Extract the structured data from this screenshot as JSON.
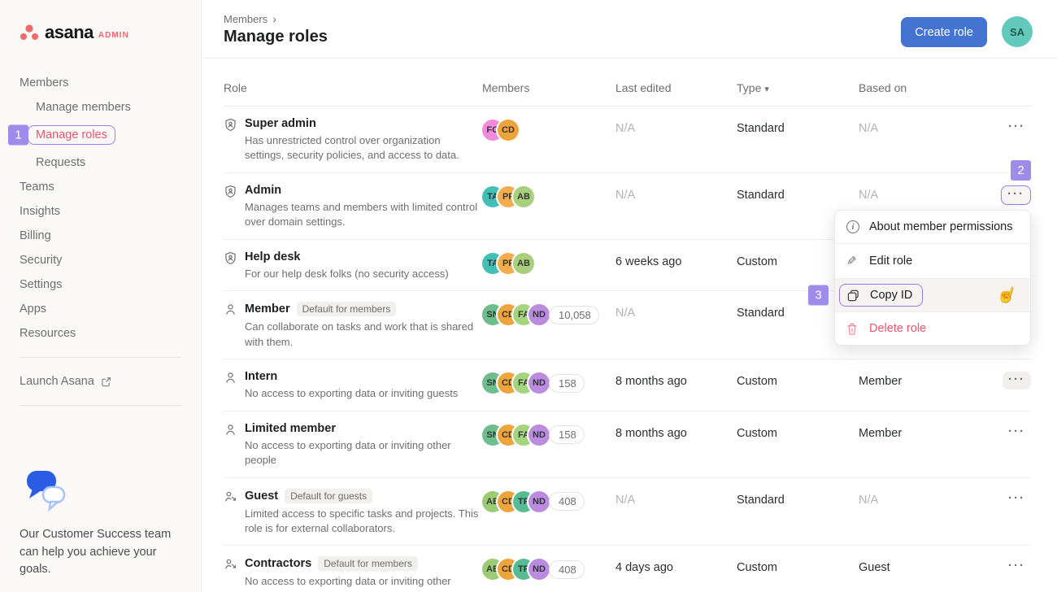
{
  "colors": {
    "accent_purple": "#9d8ce9",
    "outline_purple": "#9b7ce8",
    "brand_coral": "#f06a6a",
    "active_link": "#e8536e",
    "primary_button_blue": "#4573d2",
    "danger_red": "#e8566f",
    "header_avatar_teal": "#62c9bc"
  },
  "sidebar": {
    "logo_text": "asana",
    "logo_badge": "ADMIN",
    "items": [
      {
        "label": "Members",
        "indent": 0,
        "active": false
      },
      {
        "label": "Manage members",
        "indent": 1,
        "active": false
      },
      {
        "label": "Manage roles",
        "indent": 1,
        "active": true
      },
      {
        "label": "Requests",
        "indent": 1,
        "active": false
      },
      {
        "label": "Teams",
        "indent": 0,
        "active": false
      },
      {
        "label": "Insights",
        "indent": 0,
        "active": false
      },
      {
        "label": "Billing",
        "indent": 0,
        "active": false
      },
      {
        "label": "Security",
        "indent": 0,
        "active": false
      },
      {
        "label": "Settings",
        "indent": 0,
        "active": false
      },
      {
        "label": "Apps",
        "indent": 0,
        "active": false
      },
      {
        "label": "Resources",
        "indent": 0,
        "active": false
      }
    ],
    "launch_label": "Launch Asana",
    "help_text": "Our Customer Success team can help you achieve your goals."
  },
  "header": {
    "breadcrumb": "Members",
    "breadcrumb_chevron": "›",
    "title": "Manage roles",
    "create_button": "Create role",
    "avatar_initials": "SA"
  },
  "table": {
    "columns": [
      "Role",
      "Members",
      "Last edited",
      "Type",
      "Based on"
    ],
    "type_caret": "▾",
    "row_menu_icon": "···",
    "rows": [
      {
        "icon": "shield-user",
        "name": "Super admin",
        "badge": "",
        "description": "Has unrestricted control over organization settings, security policies, and access to data.",
        "avatars": [
          {
            "initials": "FG",
            "color": "#f08cdb"
          },
          {
            "initials": "CD",
            "color": "#eca43d"
          }
        ],
        "count": "",
        "last_edited": "N/A",
        "type": "Standard",
        "based_on": "N/A",
        "dots": "plain"
      },
      {
        "icon": "shield-user",
        "name": "Admin",
        "badge": "",
        "description": "Manages teams and members with limited control over domain settings.",
        "avatars": [
          {
            "initials": "TA",
            "color": "#43c0b5"
          },
          {
            "initials": "PF",
            "color": "#f0ad4e"
          },
          {
            "initials": "AB",
            "color": "#a8cf7e"
          }
        ],
        "count": "",
        "last_edited": "N/A",
        "type": "Standard",
        "based_on": "N/A",
        "dots": "outlined"
      },
      {
        "icon": "shield-user",
        "name": "Help desk",
        "badge": "",
        "description": "For our help desk folks (no security access)",
        "avatars": [
          {
            "initials": "TA",
            "color": "#43c0b5"
          },
          {
            "initials": "PF",
            "color": "#f0ad4e"
          },
          {
            "initials": "AB",
            "color": "#a8cf7e"
          }
        ],
        "count": "",
        "last_edited": "6 weeks ago",
        "type": "Custom",
        "based_on": "",
        "dots": "plain"
      },
      {
        "icon": "user",
        "name": "Member",
        "badge": "Default for members",
        "description": "Can collaborate on tasks and work that is shared with them.",
        "avatars": [
          {
            "initials": "SN",
            "color": "#6fbd8c"
          },
          {
            "initials": "CD",
            "color": "#eca43d"
          },
          {
            "initials": "FA",
            "color": "#a6d37f"
          },
          {
            "initials": "ND",
            "color": "#bb8be0"
          }
        ],
        "count": "10,058",
        "last_edited": "N/A",
        "type": "Standard",
        "based_on": "",
        "dots": "plain"
      },
      {
        "icon": "user",
        "name": "Intern",
        "badge": "",
        "description": "No access to exporting data or inviting guests",
        "avatars": [
          {
            "initials": "SN",
            "color": "#6fbd8c"
          },
          {
            "initials": "CD",
            "color": "#eca43d"
          },
          {
            "initials": "FA",
            "color": "#a6d37f"
          },
          {
            "initials": "ND",
            "color": "#bb8be0"
          }
        ],
        "count": "158",
        "last_edited": "8 months ago",
        "type": "Custom",
        "based_on": "Member",
        "dots": "hover"
      },
      {
        "icon": "user",
        "name": "Limited member",
        "badge": "",
        "description": "No access to exporting data or inviting other people",
        "avatars": [
          {
            "initials": "SN",
            "color": "#6fbd8c"
          },
          {
            "initials": "CD",
            "color": "#eca43d"
          },
          {
            "initials": "FA",
            "color": "#a6d37f"
          },
          {
            "initials": "ND",
            "color": "#bb8be0"
          }
        ],
        "count": "158",
        "last_edited": "8 months ago",
        "type": "Custom",
        "based_on": "Member",
        "dots": "plain"
      },
      {
        "icon": "user-external",
        "name": "Guest",
        "badge": "Default for guests",
        "description": "Limited access to specific tasks and projects. This role is for external collaborators.",
        "avatars": [
          {
            "initials": "AB",
            "color": "#9ccb75"
          },
          {
            "initials": "CD",
            "color": "#eca43d"
          },
          {
            "initials": "TP",
            "color": "#58bc92"
          },
          {
            "initials": "ND",
            "color": "#bb8be0"
          }
        ],
        "count": "408",
        "last_edited": "N/A",
        "type": "Standard",
        "based_on": "N/A",
        "dots": "plain"
      },
      {
        "icon": "user-external",
        "name": "Contractors",
        "badge": "Default for members",
        "description": "No access to exporting data or inviting other people",
        "avatars": [
          {
            "initials": "AB",
            "color": "#9ccb75"
          },
          {
            "initials": "CD",
            "color": "#eca43d"
          },
          {
            "initials": "TP",
            "color": "#58bc92"
          },
          {
            "initials": "ND",
            "color": "#bb8be0"
          }
        ],
        "count": "408",
        "last_edited": "4 days ago",
        "type": "Custom",
        "based_on": "Guest",
        "dots": "plain"
      }
    ]
  },
  "context_menu": {
    "items": [
      {
        "icon": "info-icon",
        "label": "About member permissions",
        "state": "normal"
      },
      {
        "icon": "pencil-icon",
        "label": "Edit role",
        "state": "normal"
      },
      {
        "icon": "copy-icon",
        "label": "Copy ID",
        "state": "highlighted"
      },
      {
        "icon": "trash-icon",
        "label": "Delete role",
        "state": "danger"
      }
    ]
  },
  "annotations": {
    "step1": "1",
    "step2": "2",
    "step3": "3",
    "cursor_glyph": "☝"
  }
}
